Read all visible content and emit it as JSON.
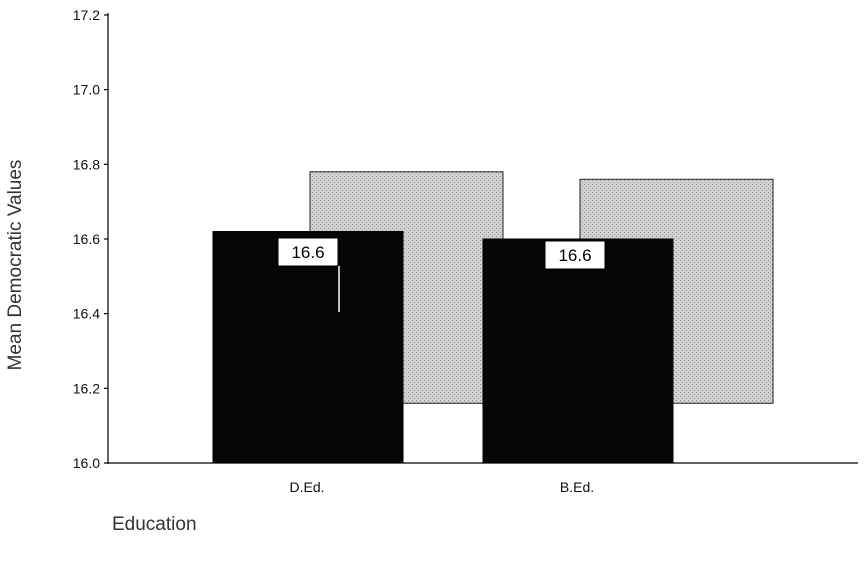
{
  "chart_data": {
    "type": "bar",
    "xlabel": "Education",
    "ylabel": "Mean Democratic Values",
    "categories": [
      "D.Ed.",
      "B.Ed."
    ],
    "ylim": [
      16.0,
      17.2
    ],
    "yticks": [
      "16.0",
      "16.2",
      "16.4",
      "16.6",
      "16.8",
      "17.0",
      "17.2"
    ],
    "grid": false,
    "legend": "none",
    "series": [
      {
        "values": [
          16.62,
          16.6
        ],
        "color": "#050505",
        "data_labels": [
          "16.6",
          "16.6"
        ],
        "bar_base": 16.0
      },
      {
        "values": [
          16.78,
          16.76
        ],
        "color": "#c9c9c9",
        "bar_base": 16.16
      }
    ]
  }
}
